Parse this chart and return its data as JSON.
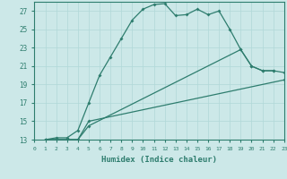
{
  "xlabel": "Humidex (Indice chaleur)",
  "bg_color": "#cce8e8",
  "line_color": "#2e7d6e",
  "grid_color": "#b0d8d8",
  "xlim": [
    0,
    23
  ],
  "ylim": [
    13,
    28
  ],
  "yticks": [
    13,
    15,
    17,
    19,
    21,
    23,
    25,
    27
  ],
  "xticks": [
    0,
    1,
    2,
    3,
    4,
    5,
    6,
    7,
    8,
    9,
    10,
    11,
    12,
    13,
    14,
    15,
    16,
    17,
    18,
    19,
    20,
    21,
    22,
    23
  ],
  "line1_x": [
    1,
    2,
    3,
    4,
    5,
    6,
    7,
    8,
    9,
    10,
    11,
    12,
    13,
    14,
    15,
    16,
    17,
    18,
    19,
    20,
    21,
    22
  ],
  "line1_y": [
    13,
    13.2,
    13.2,
    14,
    17,
    20,
    22,
    24,
    26,
    27.2,
    27.7,
    27.8,
    26.5,
    26.6,
    27.2,
    26.6,
    27.0,
    25.0,
    22.8,
    21.0,
    20.5,
    20.5
  ],
  "line2_x": [
    1,
    3,
    4,
    5,
    19,
    20,
    21,
    22,
    23
  ],
  "line2_y": [
    13,
    13,
    13,
    14.5,
    22.8,
    21.0,
    20.5,
    20.5,
    20.3
  ],
  "line3_x": [
    1,
    3,
    4,
    5,
    23
  ],
  "line3_y": [
    13,
    13,
    13,
    15.0,
    19.5
  ]
}
